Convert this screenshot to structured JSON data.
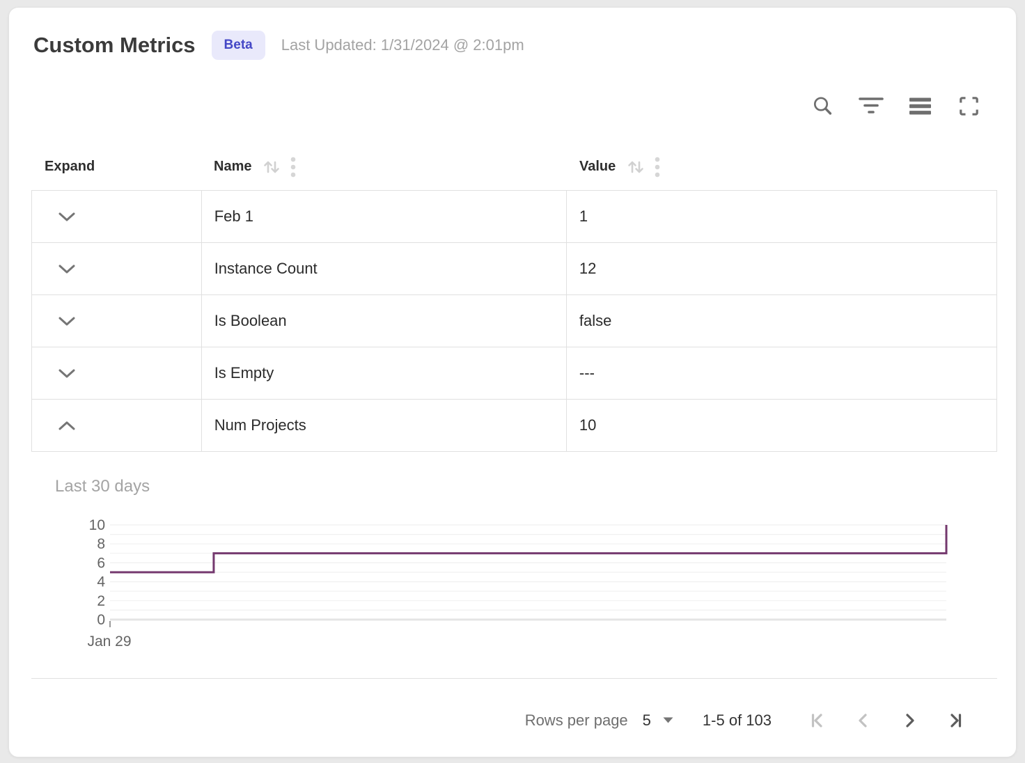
{
  "page": {
    "background": "#e9e9e9",
    "card_background": "#ffffff"
  },
  "header": {
    "title": "Custom Metrics",
    "badge": "Beta",
    "badge_bg": "#e9e9fb",
    "badge_color": "#4447c6",
    "last_updated": "Last Updated: 1/31/2024 @ 2:01pm"
  },
  "toolbar": {
    "icon_color": "#6e6e6e",
    "icons": [
      "search",
      "filter",
      "density",
      "fullscreen"
    ]
  },
  "table": {
    "columns": [
      {
        "label": "Expand",
        "sortable": false
      },
      {
        "label": "Name",
        "sortable": true
      },
      {
        "label": "Value",
        "sortable": true
      }
    ],
    "rows": [
      {
        "name": "Feb 1",
        "value": "1",
        "expanded": false
      },
      {
        "name": "Instance Count",
        "value": "12",
        "expanded": false
      },
      {
        "name": "Is Boolean",
        "value": "false",
        "expanded": false
      },
      {
        "name": "Is Empty",
        "value": "---",
        "expanded": false
      },
      {
        "name": "Num Projects",
        "value": "10",
        "expanded": true
      }
    ]
  },
  "chart_data": {
    "type": "line",
    "line_style": "step-after",
    "title": "Last 30 days",
    "series": [
      {
        "name": "Num Projects",
        "color": "#74386e",
        "points": [
          {
            "x_frac": 0,
            "y": 5
          },
          {
            "x_frac": 0.124,
            "y": 5
          },
          {
            "x_frac": 0.124,
            "y": 7
          },
          {
            "x_frac": 1,
            "y": 7
          },
          {
            "x_frac": 1,
            "y": 10
          }
        ]
      }
    ],
    "ylim": [
      0,
      10
    ],
    "y_ticks": [
      10,
      8,
      6,
      4,
      2,
      0
    ],
    "y_gridline_step": 1,
    "x_tick_labels": [
      "Jan 29"
    ],
    "grid_on": true,
    "grid_color": "#f0f0f0",
    "baseline_color": "#e4e4e4",
    "tick_label_color": "#646464",
    "legend": "none"
  },
  "footer": {
    "rows_per_page_label": "Rows per page",
    "rows_per_page_value": "5",
    "range_label": "1-5 of 103",
    "pagination": [
      {
        "name": "first-page",
        "enabled": false
      },
      {
        "name": "previous-page",
        "enabled": false
      },
      {
        "name": "next-page",
        "enabled": true
      },
      {
        "name": "last-page",
        "enabled": true
      }
    ]
  }
}
